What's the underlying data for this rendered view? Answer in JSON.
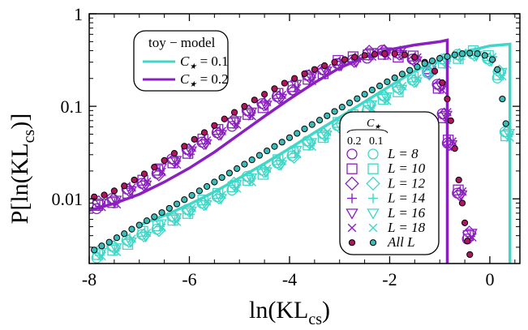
{
  "chart_data": {
    "type": "scatter",
    "x_scale": "linear",
    "y_scale": "log",
    "xlabel": "ln(KL",
    "xlabel_sub": "cs",
    "xlabel_close": ")",
    "ylabel": "P[ln(KL",
    "ylabel_sub": "cs",
    "ylabel_close": ")]",
    "xlim": [
      -8.0,
      0.6
    ],
    "ylim": [
      0.002,
      1.0
    ],
    "x_ticks": [
      {
        "value": -8,
        "label": "-8"
      },
      {
        "value": -6,
        "label": "-6"
      },
      {
        "value": -4,
        "label": "-4"
      },
      {
        "value": -2,
        "label": "-2"
      },
      {
        "value": 0,
        "label": "0"
      }
    ],
    "y_ticks": [
      {
        "value": 0.01,
        "label": "0.01"
      },
      {
        "value": 0.1,
        "label": "0.1"
      },
      {
        "value": 1,
        "label": "1"
      }
    ],
    "colors": {
      "c02": "#8b1fbf",
      "c01": "#40d6c8",
      "allL_c02_fill": "#b0165f",
      "allL_c01_fill": "#3bbcb8"
    },
    "series": [
      {
        "name": "toy-model C*=0.2",
        "kind": "line",
        "color_key": "c02",
        "x": [
          -8.0,
          -7.5,
          -7.0,
          -6.5,
          -6.0,
          -5.5,
          -5.0,
          -4.5,
          -4.0,
          -3.5,
          -3.0,
          -2.5,
          -2.0,
          -1.5,
          -1.0,
          -0.85,
          -0.85
        ],
        "y": [
          0.0075,
          0.0089,
          0.0112,
          0.0152,
          0.0215,
          0.032,
          0.05,
          0.078,
          0.12,
          0.18,
          0.26,
          0.34,
          0.41,
          0.46,
          0.5,
          0.52,
          0.002
        ]
      },
      {
        "name": "toy-model C*=0.1",
        "kind": "line",
        "color_key": "c01",
        "x": [
          -7.0,
          -6.5,
          -6.0,
          -5.5,
          -5.0,
          -4.5,
          -4.0,
          -3.5,
          -3.0,
          -2.5,
          -2.0,
          -1.5,
          -1.0,
          -0.5,
          0.0,
          0.4,
          0.4
        ],
        "y": [
          0.0052,
          0.0066,
          0.0087,
          0.0119,
          0.0168,
          0.024,
          0.035,
          0.052,
          0.076,
          0.112,
          0.165,
          0.24,
          0.32,
          0.39,
          0.45,
          0.47,
          0.002
        ]
      },
      {
        "name": "All L C*=0.2",
        "kind": "points",
        "color_key": "c02",
        "x": [
          -7.9,
          -7.7,
          -7.5,
          -7.3,
          -7.1,
          -6.9,
          -6.7,
          -6.5,
          -6.3,
          -6.1,
          -5.9,
          -5.7,
          -5.5,
          -5.3,
          -5.1,
          -4.9,
          -4.7,
          -4.5,
          -4.3,
          -4.1,
          -3.9,
          -3.7,
          -3.5,
          -3.3,
          -3.1,
          -2.9,
          -2.7,
          -2.5,
          -2.3,
          -2.1,
          -1.9,
          -1.7,
          -1.5,
          -1.3,
          -1.1,
          -0.95,
          -0.85,
          -0.78,
          -0.7,
          -0.62,
          -0.55,
          -0.5,
          -0.45,
          -0.4
        ],
        "y": [
          0.0105,
          0.011,
          0.0122,
          0.0138,
          0.016,
          0.0186,
          0.022,
          0.026,
          0.031,
          0.037,
          0.044,
          0.052,
          0.062,
          0.073,
          0.086,
          0.1,
          0.117,
          0.135,
          0.155,
          0.178,
          0.2,
          0.225,
          0.25,
          0.275,
          0.3,
          0.32,
          0.34,
          0.355,
          0.365,
          0.37,
          0.37,
          0.36,
          0.34,
          0.3,
          0.24,
          0.18,
          0.12,
          0.07,
          0.035,
          0.016,
          0.009,
          0.0055,
          0.0035,
          0.0025
        ]
      },
      {
        "name": "All L C*=0.1",
        "kind": "points",
        "color_key": "c01",
        "x": [
          -7.9,
          -7.75,
          -7.6,
          -7.45,
          -7.3,
          -7.15,
          -7.0,
          -6.85,
          -6.7,
          -6.55,
          -6.4,
          -6.25,
          -6.1,
          -5.95,
          -5.8,
          -5.65,
          -5.5,
          -5.35,
          -5.2,
          -5.05,
          -4.9,
          -4.75,
          -4.6,
          -4.45,
          -4.3,
          -4.15,
          -4.0,
          -3.85,
          -3.7,
          -3.55,
          -3.4,
          -3.25,
          -3.1,
          -2.95,
          -2.8,
          -2.65,
          -2.5,
          -2.35,
          -2.2,
          -2.05,
          -1.9,
          -1.75,
          -1.6,
          -1.45,
          -1.3,
          -1.15,
          -1.0,
          -0.85,
          -0.7,
          -0.55,
          -0.4,
          -0.25,
          -0.1,
          0.05,
          0.15,
          0.25,
          0.32
        ],
        "y": [
          0.0028,
          0.0031,
          0.0034,
          0.0038,
          0.0042,
          0.0047,
          0.0052,
          0.0058,
          0.0064,
          0.0071,
          0.0079,
          0.0088,
          0.0098,
          0.0109,
          0.0122,
          0.0136,
          0.0152,
          0.017,
          0.019,
          0.0212,
          0.0237,
          0.0264,
          0.0295,
          0.033,
          0.0368,
          0.041,
          0.0458,
          0.051,
          0.057,
          0.0635,
          0.0708,
          0.079,
          0.088,
          0.098,
          0.109,
          0.121,
          0.135,
          0.15,
          0.166,
          0.184,
          0.203,
          0.223,
          0.245,
          0.267,
          0.29,
          0.31,
          0.33,
          0.345,
          0.36,
          0.37,
          0.375,
          0.37,
          0.355,
          0.32,
          0.25,
          0.12,
          0.065
        ]
      },
      {
        "name": "L=8..18 C*=0.2",
        "kind": "markers",
        "color_key": "c02",
        "x": [
          -7.8,
          -7.5,
          -7.2,
          -6.9,
          -6.6,
          -6.3,
          -6.0,
          -5.7,
          -5.4,
          -5.1,
          -4.8,
          -4.5,
          -4.2,
          -3.9,
          -3.6,
          -3.3,
          -3.0,
          -2.7,
          -2.4,
          -2.1,
          -1.8,
          -1.5,
          -1.2,
          -1.0,
          -0.9,
          -0.8,
          -0.6,
          -0.4
        ],
        "y": [
          0.0085,
          0.0095,
          0.0125,
          0.015,
          0.02,
          0.025,
          0.033,
          0.041,
          0.054,
          0.066,
          0.085,
          0.105,
          0.13,
          0.16,
          0.2,
          0.24,
          0.29,
          0.33,
          0.36,
          0.38,
          0.37,
          0.33,
          0.25,
          0.16,
          0.08,
          0.04,
          0.012,
          0.004
        ]
      },
      {
        "name": "L=8..18 C*=0.1",
        "kind": "markers",
        "color_key": "c01",
        "x": [
          -7.8,
          -7.5,
          -7.2,
          -6.9,
          -6.6,
          -6.3,
          -6.0,
          -5.7,
          -5.4,
          -5.1,
          -4.8,
          -4.5,
          -4.2,
          -3.9,
          -3.6,
          -3.3,
          -3.0,
          -2.7,
          -2.4,
          -2.1,
          -1.8,
          -1.5,
          -1.2,
          -0.9,
          -0.6,
          -0.3,
          0.0,
          0.2,
          0.35
        ],
        "y": [
          0.0025,
          0.0029,
          0.0035,
          0.0042,
          0.005,
          0.006,
          0.0074,
          0.009,
          0.011,
          0.0135,
          0.0165,
          0.02,
          0.025,
          0.031,
          0.039,
          0.049,
          0.062,
          0.078,
          0.098,
          0.124,
          0.156,
          0.196,
          0.245,
          0.3,
          0.35,
          0.37,
          0.34,
          0.22,
          0.05
        ]
      }
    ],
    "legend_toy": {
      "title": "toy − model",
      "entries": [
        {
          "label": "C",
          "sub": "★",
          "eq": " = 0.1",
          "color_key": "c01"
        },
        {
          "label": "C",
          "sub": "★",
          "eq": " = 0.2",
          "color_key": "c02"
        }
      ]
    },
    "legend_L": {
      "header_label": "C",
      "header_sub": "★",
      "col1": "0.2",
      "col2": "0.1",
      "entries": [
        {
          "label": "L = 8",
          "marker": "circle"
        },
        {
          "label": "L = 10",
          "marker": "square"
        },
        {
          "label": "L = 12",
          "marker": "diamond"
        },
        {
          "label": "L = 14",
          "marker": "plus"
        },
        {
          "label": "L = 16",
          "marker": "triangle-down"
        },
        {
          "label": "L = 18",
          "marker": "cross"
        },
        {
          "label": "All L",
          "marker": "dot"
        }
      ]
    }
  }
}
